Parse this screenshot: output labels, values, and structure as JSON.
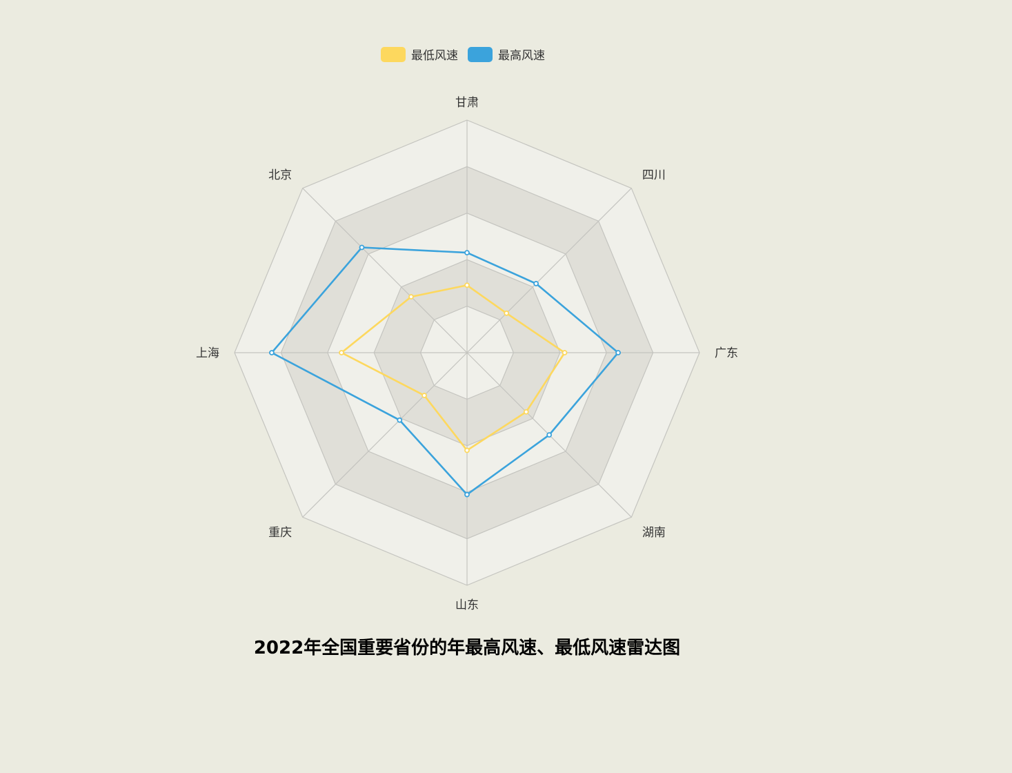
{
  "chart_data": {
    "type": "radar",
    "title": "2022年全国重要省份的年最高风速、最低风速雷达图",
    "indicators": [
      "甘肃",
      "四川",
      "广东",
      "湖南",
      "山东",
      "重庆",
      "上海",
      "北京"
    ],
    "max": 10,
    "split_number": 5,
    "series": [
      {
        "name": "最低风速",
        "color": "#fdd85e",
        "values": [
          2.9,
          2.4,
          4.2,
          3.6,
          4.2,
          2.6,
          5.4,
          3.4
        ]
      },
      {
        "name": "最高风速",
        "color": "#3ba3dc",
        "values": [
          4.3,
          4.2,
          6.5,
          5.0,
          6.1,
          4.1,
          8.4,
          6.4
        ]
      }
    ],
    "legend_position": "top-center"
  },
  "colors": {
    "background": "#ebebe0",
    "split_area_light": "#f0f0ea",
    "split_area_dark": "#e0dfd8",
    "axis_line": "#c4c4bf"
  }
}
